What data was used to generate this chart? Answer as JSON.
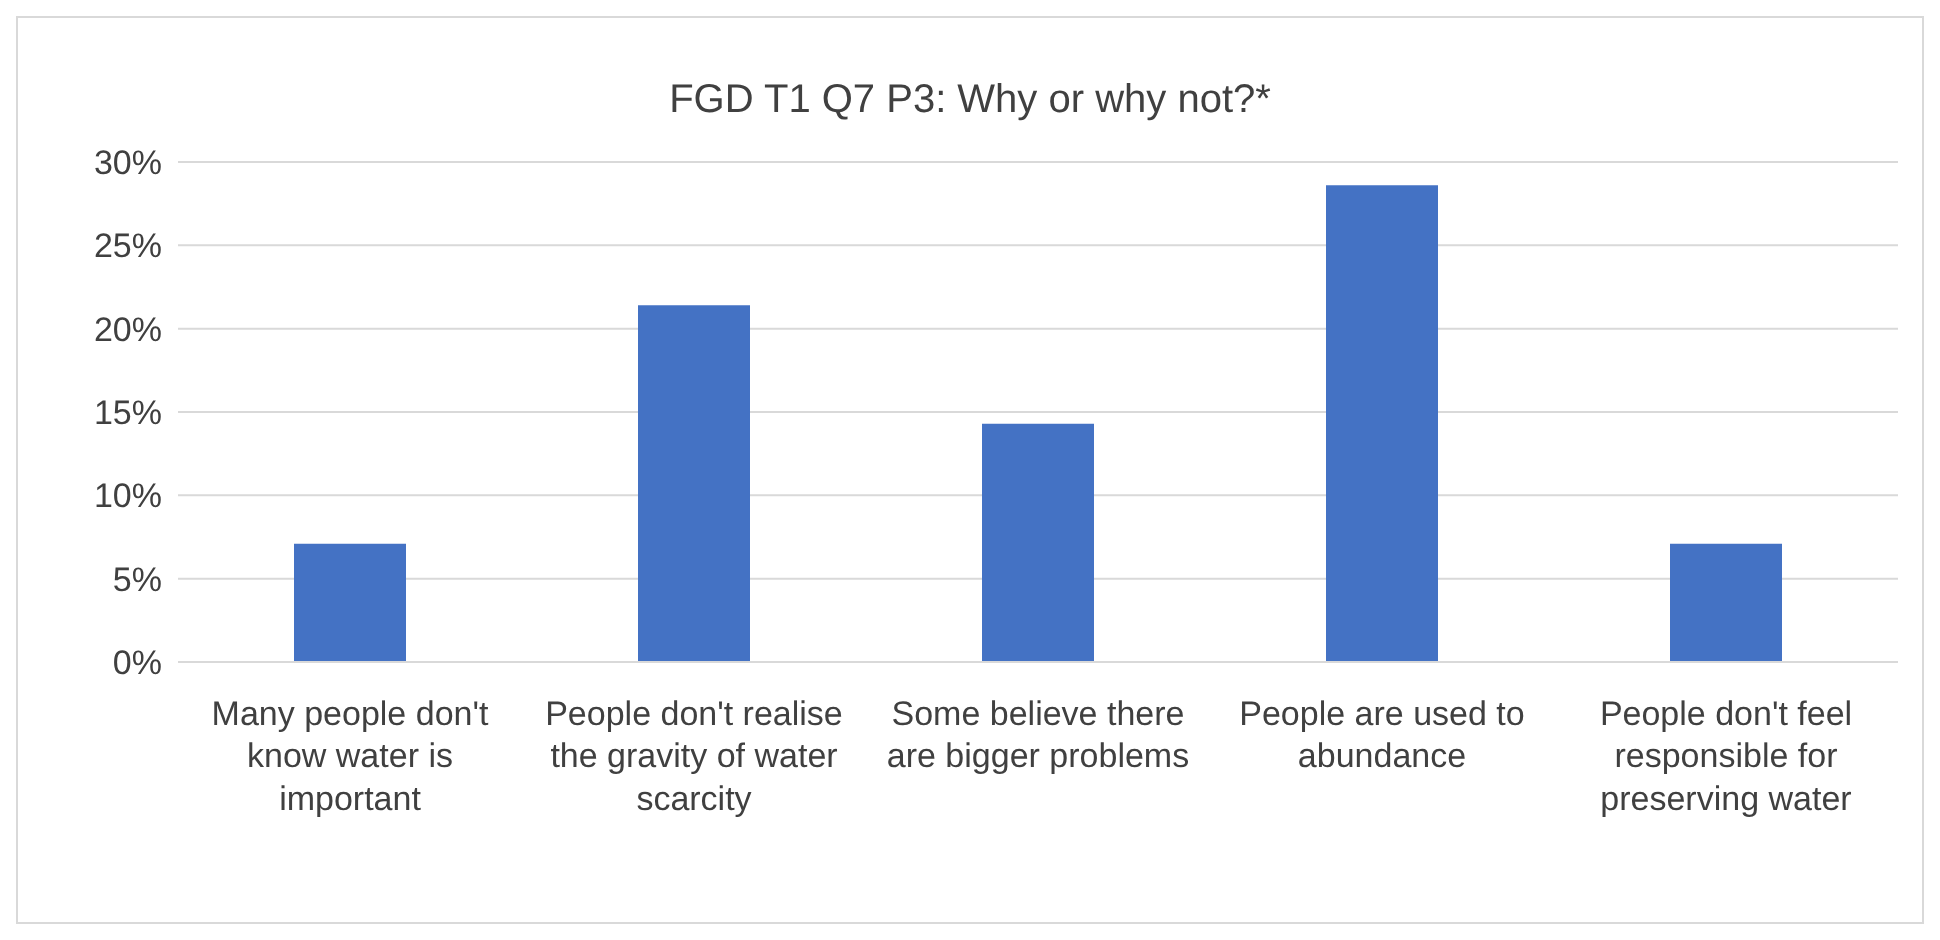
{
  "chart_data": {
    "type": "bar",
    "title": "FGD T1 Q7 P3: Why or why not?*",
    "categories": [
      "Many people don't know water is important",
      "People don't realise the gravity of water scarcity",
      "Some believe there are bigger problems",
      "People are used to abundance",
      "People don't feel responsible for preserving water"
    ],
    "values": [
      7.1,
      21.4,
      14.3,
      28.6,
      7.1
    ],
    "color": "#4472c4",
    "ylim": [
      0,
      30
    ],
    "yticks": [
      {
        "value": 0,
        "label": "0%"
      },
      {
        "value": 5,
        "label": "5%"
      },
      {
        "value": 10,
        "label": "10%"
      },
      {
        "value": 15,
        "label": "15%"
      },
      {
        "value": 20,
        "label": "20%"
      },
      {
        "value": 25,
        "label": "25%"
      },
      {
        "value": 30,
        "label": "30%"
      }
    ],
    "grid": "y",
    "legend": false
  }
}
